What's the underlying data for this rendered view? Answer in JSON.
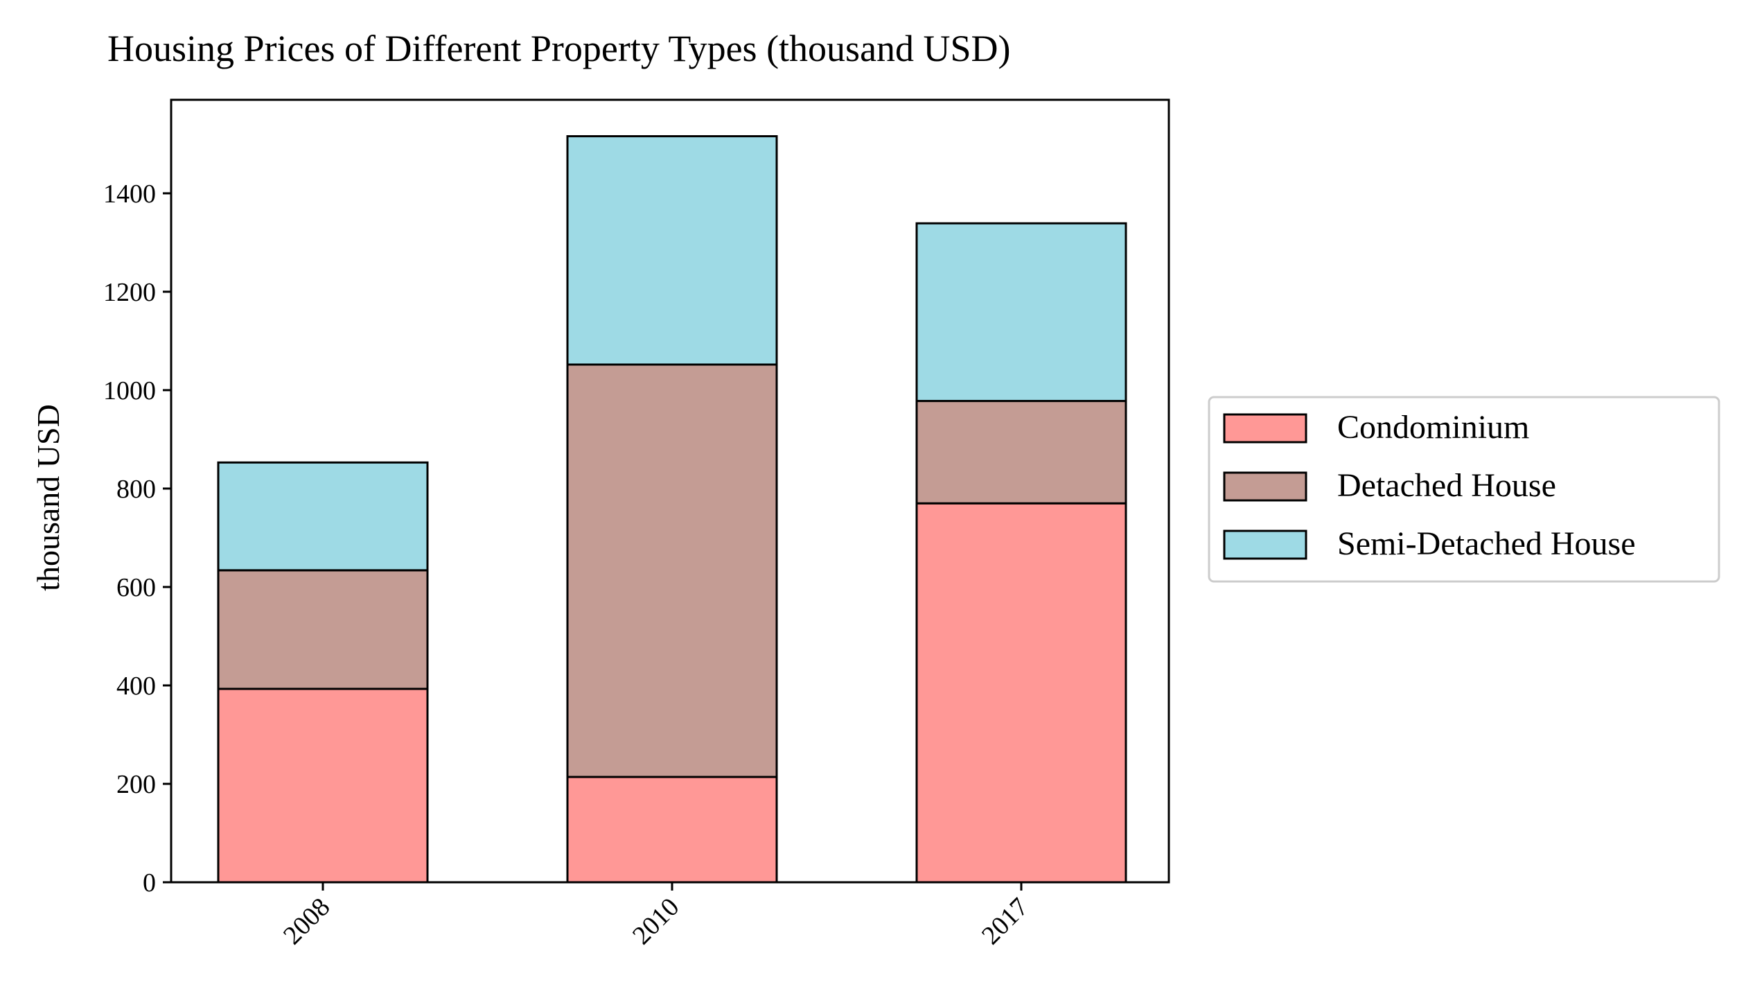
{
  "chart_data": {
    "type": "bar",
    "stacked": true,
    "title": "Housing Prices of Different Property Types (thousand USD)",
    "xlabel": "",
    "ylabel": "thousand USD",
    "categories": [
      "2008",
      "2010",
      "2017"
    ],
    "ylim": [
      0,
      1590
    ],
    "yticks": [
      0,
      200,
      400,
      600,
      800,
      1000,
      1200,
      1400
    ],
    "grid": false,
    "legend_position": "right",
    "series": [
      {
        "name": "Condominium",
        "values": [
          393,
          214,
          770
        ],
        "color": "#ff9896"
      },
      {
        "name": "Detached House",
        "values": [
          241,
          838,
          208
        ],
        "color": "#c49c94"
      },
      {
        "name": "Semi-Detached House",
        "values": [
          219,
          464,
          361
        ],
        "color": "#9edae5"
      }
    ]
  }
}
